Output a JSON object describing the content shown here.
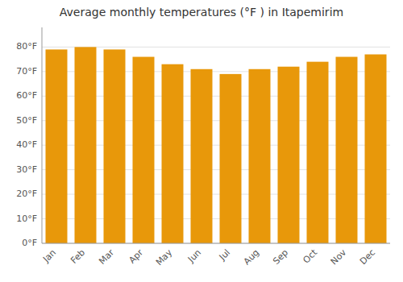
{
  "chart_data": {
    "type": "bar",
    "title": "Average monthly temperatures (°F ) in Itapemirim",
    "categories": [
      "Jan",
      "Feb",
      "Mar",
      "Apr",
      "May",
      "Jun",
      "Jul",
      "Aug",
      "Sep",
      "Oct",
      "Nov",
      "Dec"
    ],
    "values": [
      79,
      80,
      79,
      76,
      73,
      71,
      69,
      71,
      72,
      74,
      76,
      77
    ],
    "color": "#E8980A",
    "ylim": [
      0,
      88
    ],
    "yticks": [
      {
        "value": 0,
        "label": "0°F"
      },
      {
        "value": 10,
        "label": "10°F"
      },
      {
        "value": 20,
        "label": "20°F"
      },
      {
        "value": 30,
        "label": "30°F"
      },
      {
        "value": 40,
        "label": "40°F"
      },
      {
        "value": 50,
        "label": "50°F"
      },
      {
        "value": 60,
        "label": "60°F"
      },
      {
        "value": 70,
        "label": "70°F"
      },
      {
        "value": 80,
        "label": "80°F"
      }
    ],
    "grid": true
  }
}
